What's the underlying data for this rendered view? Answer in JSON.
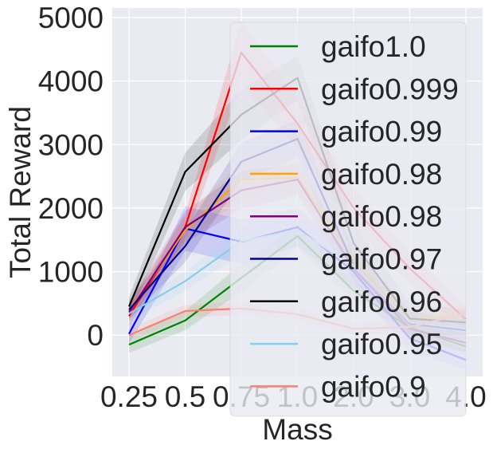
{
  "chart_data": {
    "type": "line",
    "title": "",
    "xlabel": "Mass",
    "ylabel": "Total Reward",
    "categories": [
      "0.25",
      "0.5",
      "0.75",
      "1.0",
      "2.0",
      "3.0",
      "4.0"
    ],
    "yticks": [
      "0",
      "1000",
      "2000",
      "3000",
      "4000",
      "5000"
    ],
    "ylim": [
      -650,
      5150
    ],
    "grid": true,
    "legend_position": "right",
    "background": "#eaeaf2",
    "series": [
      {
        "name": "gaifo1.0",
        "color": "#008000",
        "values": [
          -150,
          230,
          900,
          1560,
          700,
          120,
          -180
        ],
        "band": [
          130,
          150,
          220,
          180,
          150,
          120,
          100
        ]
      },
      {
        "name": "gaifo0.999",
        "color": "#ff0000",
        "values": [
          300,
          1700,
          4450,
          3330,
          2000,
          1050,
          250
        ],
        "band": [
          150,
          200,
          500,
          400,
          300,
          250,
          200
        ]
      },
      {
        "name": "gaifo0.99",
        "color": "#0000ff",
        "values": [
          20,
          1680,
          1470,
          1700,
          1000,
          -50,
          -390
        ],
        "band": [
          150,
          350,
          350,
          300,
          250,
          200,
          150
        ]
      },
      {
        "name": "gaifo0.98",
        "color": "#ffa500",
        "values": [
          380,
          1650,
          2450,
          2480,
          1200,
          250,
          330
        ],
        "band": [
          150,
          200,
          300,
          250,
          200,
          150,
          150
        ]
      },
      {
        "name": "gaifo0.98",
        "color": "#800080",
        "values": [
          360,
          1700,
          2280,
          2450,
          1050,
          100,
          -120
        ],
        "band": [
          150,
          250,
          300,
          250,
          200,
          150,
          150
        ]
      },
      {
        "name": "gaifo0.97",
        "color": "#00008b",
        "values": [
          400,
          1400,
          2730,
          3090,
          1100,
          180,
          80
        ],
        "band": [
          150,
          250,
          300,
          300,
          250,
          200,
          150
        ]
      },
      {
        "name": "gaifo0.96",
        "color": "#000000",
        "values": [
          450,
          2570,
          3470,
          4050,
          1450,
          260,
          200
        ],
        "band": [
          150,
          300,
          400,
          350,
          300,
          250,
          200
        ]
      },
      {
        "name": "gaifo0.95",
        "color": "#87ceeb",
        "values": [
          340,
          850,
          1480,
          1650,
          1100,
          200,
          100
        ],
        "band": [
          120,
          150,
          200,
          200,
          200,
          150,
          150
        ]
      },
      {
        "name": "gaifo0.9",
        "color": "#fa8072",
        "values": [
          0,
          380,
          420,
          330,
          100,
          130,
          340
        ],
        "band": [
          100,
          100,
          100,
          100,
          100,
          100,
          100
        ]
      }
    ]
  }
}
